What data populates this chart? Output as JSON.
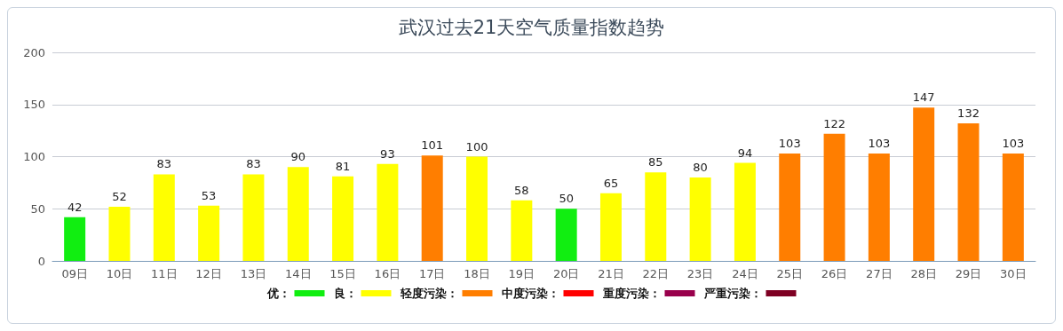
{
  "chart_data": {
    "type": "bar",
    "title": "武汉过去21天空气质量指数趋势",
    "categories": [
      "09日",
      "10日",
      "11日",
      "12日",
      "13日",
      "14日",
      "15日",
      "16日",
      "17日",
      "18日",
      "19日",
      "20日",
      "21日",
      "22日",
      "23日",
      "24日",
      "25日",
      "26日",
      "27日",
      "28日",
      "29日",
      "30日"
    ],
    "series": [
      {
        "name": "优：",
        "color": "#11ee11",
        "values": [
          42,
          null,
          null,
          null,
          null,
          null,
          null,
          null,
          null,
          null,
          null,
          50,
          null,
          null,
          null,
          null,
          null,
          null,
          null,
          null,
          null,
          null
        ]
      },
      {
        "name": "良：",
        "color": "#ffff00",
        "values": [
          null,
          52,
          83,
          53,
          83,
          90,
          81,
          93,
          null,
          100,
          58,
          null,
          65,
          85,
          80,
          94,
          null,
          null,
          null,
          null,
          null,
          null
        ]
      },
      {
        "name": "轻度污染：",
        "color": "#ff7e00",
        "values": [
          null,
          null,
          null,
          null,
          null,
          null,
          null,
          null,
          101,
          null,
          null,
          null,
          null,
          null,
          null,
          null,
          103,
          122,
          103,
          147,
          132,
          103
        ]
      },
      {
        "name": "中度污染：",
        "color": "#ff0000",
        "values": [
          null,
          null,
          null,
          null,
          null,
          null,
          null,
          null,
          null,
          null,
          null,
          null,
          null,
          null,
          null,
          null,
          null,
          null,
          null,
          null,
          null,
          null
        ]
      },
      {
        "name": "重度污染：",
        "color": "#99004c",
        "values": [
          null,
          null,
          null,
          null,
          null,
          null,
          null,
          null,
          null,
          null,
          null,
          null,
          null,
          null,
          null,
          null,
          null,
          null,
          null,
          null,
          null,
          null
        ]
      },
      {
        "name": "严重污染：",
        "color": "#7e0023",
        "values": [
          null,
          null,
          null,
          null,
          null,
          null,
          null,
          null,
          null,
          null,
          null,
          null,
          null,
          null,
          null,
          null,
          null,
          null,
          null,
          null,
          null,
          null
        ]
      }
    ],
    "stacked": true,
    "data_labels": true,
    "ylim": [
      0,
      200
    ],
    "yticks": [
      0,
      50,
      100,
      150,
      200
    ],
    "grid": "y",
    "legend": "bottom"
  }
}
